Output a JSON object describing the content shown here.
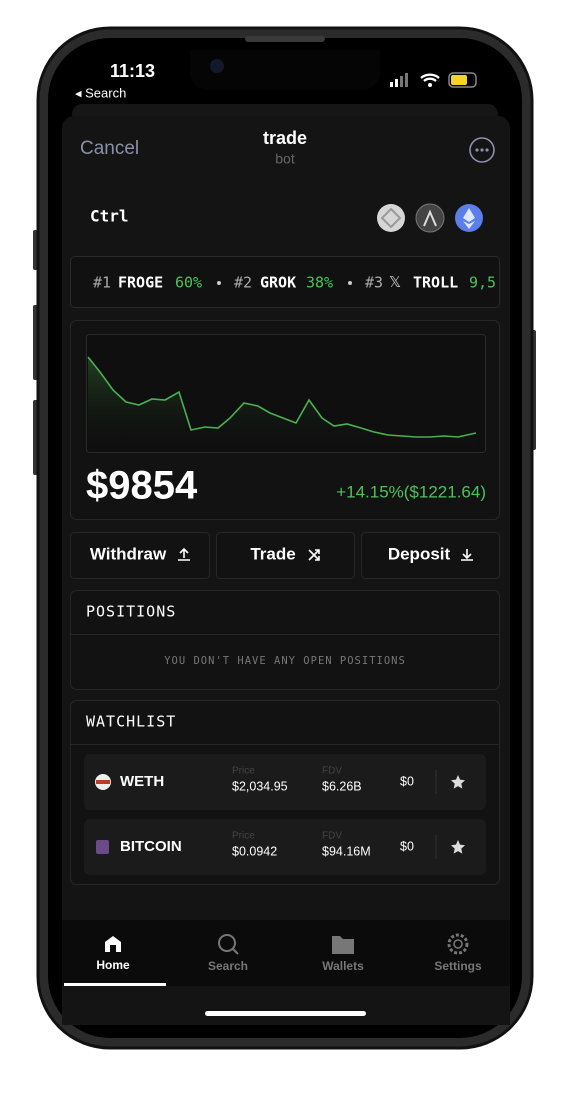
{
  "status": {
    "time": "11:13",
    "back": "◂ Search"
  },
  "header": {
    "cancel": "Cancel",
    "title": "trade",
    "subtitle": "bot"
  },
  "brand": "Ctrl",
  "ticker": [
    {
      "rank": "#1",
      "name": "FROGE",
      "pct": "60%"
    },
    {
      "rank": "#2",
      "name": "GROK",
      "pct": "38%"
    },
    {
      "rank": "#3",
      "icon": "𝕏",
      "name": "TROLL",
      "pct": "9,5"
    }
  ],
  "balance": {
    "amount": "$9854",
    "change": "+14.15%($1221.64)"
  },
  "actions": [
    "Withdraw",
    "Trade",
    "Deposit"
  ],
  "positions": {
    "title": "POSITIONS",
    "empty": "YOU DON'T HAVE ANY OPEN POSITIONS"
  },
  "watchlist": {
    "title": "WATCHLIST",
    "rows": [
      {
        "name": "WETH",
        "price_label": "Price",
        "price": "$2,034.95",
        "fdv_label": "FDV",
        "fdv": "$6.26B",
        "holding": "$0"
      },
      {
        "name": "BITCOIN",
        "price_label": "Price",
        "price": "$0.0942",
        "fdv_label": "FDV",
        "fdv": "$94.16M",
        "holding": "$0"
      }
    ]
  },
  "tabs": [
    "Home",
    "Search",
    "Wallets",
    "Settings"
  ]
}
